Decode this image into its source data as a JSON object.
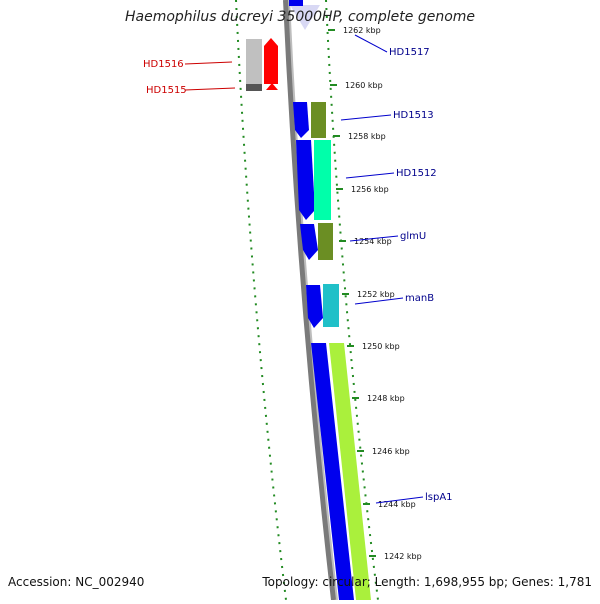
{
  "title": "Haemophilus ducreyi 35000HP, complete genome",
  "footer": {
    "accession": "Accession: NC_002940",
    "summary": "Topology: circular; Length: 1,698,955 bp; Genes: 1,781"
  },
  "colors": {
    "blue": "#0000ee",
    "olive": "#6b8e23",
    "teal": "#00ffaa",
    "cyan": "#20c0c8",
    "lime": "#aaf03c",
    "red": "#ff0000",
    "grey": "#c0c0c0",
    "label_blue": "#00008b",
    "label_red": "#cc0000",
    "tick_green": "#228b22"
  },
  "kbp_ticks": [
    "1262 kbp",
    "1260 kbp",
    "1258 kbp",
    "1256 kbp",
    "1254 kbp",
    "1252 kbp",
    "1250 kbp",
    "1248 kbp",
    "1246 kbp",
    "1244 kbp",
    "1242 kbp"
  ],
  "gene_labels_right": [
    "HD1517",
    "HD1513",
    "HD1512",
    "glmU",
    "manB",
    "lspA1"
  ],
  "gene_labels_left": [
    "HD1516",
    "HD1515"
  ]
}
